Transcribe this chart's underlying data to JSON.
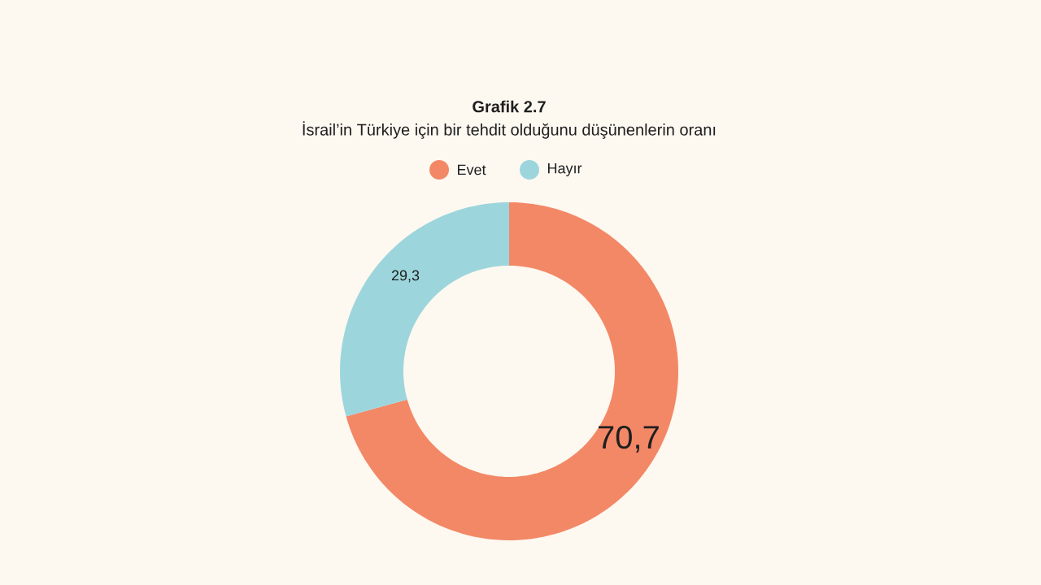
{
  "chart_data": {
    "type": "donut",
    "title": "Grafik 2.7",
    "subtitle": "İsrail’in Türkiye için bir tehdit olduğunu düşünenlerin oranı",
    "categories": [
      "Evet",
      "Hayır"
    ],
    "values": [
      70.7,
      29.3
    ],
    "colors": [
      "#f38866",
      "#9cd6dc"
    ],
    "value_labels": [
      "70,7",
      "29,3"
    ],
    "legend": "top"
  }
}
